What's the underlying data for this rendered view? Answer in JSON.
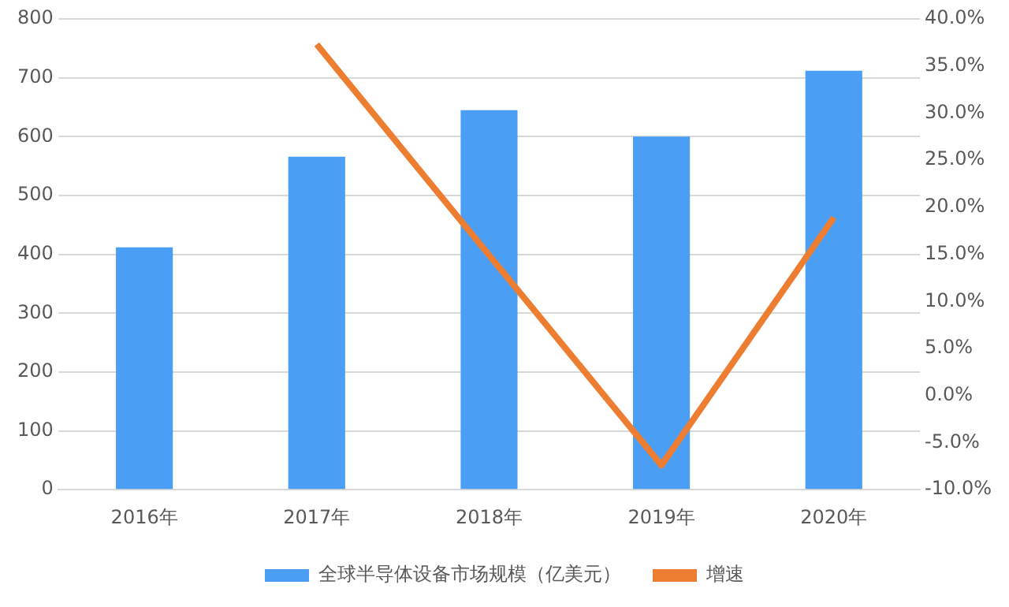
{
  "chart_data": {
    "type": "bar",
    "categories": [
      "2016年",
      "2017年",
      "2018年",
      "2019年",
      "2020年"
    ],
    "series": [
      {
        "name": "全球半导体设备市场规模（亿美元）",
        "color": "#4a9ff5",
        "values": [
          412,
          566,
          645,
          600,
          712
        ]
      },
      {
        "name": "增速",
        "type": "line",
        "axis": "y2",
        "color": "#ed7d31",
        "values": [
          null,
          37.3,
          14.9,
          -7.4,
          18.9
        ]
      }
    ],
    "ylim": [
      0,
      800
    ],
    "yticks": [
      0,
      100,
      200,
      300,
      400,
      500,
      600,
      700,
      800
    ],
    "y2lim": [
      -10,
      40
    ],
    "y2ticks": [
      {
        "value": -10,
        "label": "-10.0%"
      },
      {
        "value": -5,
        "label": "-5.0%"
      },
      {
        "value": 0,
        "label": "0.0%"
      },
      {
        "value": 5,
        "label": "5.0%"
      },
      {
        "value": 10,
        "label": "10.0%"
      },
      {
        "value": 15,
        "label": "15.0%"
      },
      {
        "value": 20,
        "label": "20.0%"
      },
      {
        "value": 25,
        "label": "25.0%"
      },
      {
        "value": 30,
        "label": "30.0%"
      },
      {
        "value": 35,
        "label": "35.0%"
      },
      {
        "value": 40,
        "label": "40.0%"
      }
    ],
    "grid": "y",
    "legend": "bottom",
    "marker": "none"
  }
}
